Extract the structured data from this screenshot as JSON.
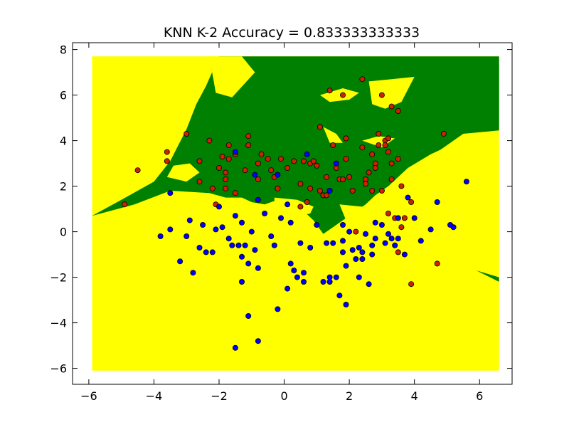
{
  "chart_data": {
    "type": "scatter",
    "title": "KNN K-2 Accuracy = 0.833333333333",
    "xlabel": "",
    "ylabel": "",
    "xlim": [
      -6.5,
      7.0
    ],
    "ylim": [
      -6.7,
      8.3
    ],
    "x_ticks": [
      -6,
      -4,
      -2,
      0,
      2,
      4,
      6
    ],
    "y_ticks": [
      -6,
      -4,
      -2,
      0,
      2,
      4,
      6,
      8
    ],
    "x_tick_labels": [
      "−6",
      "−4",
      "−2",
      "0",
      "2",
      "4",
      "6"
    ],
    "y_tick_labels": [
      "−6",
      "−4",
      "−2",
      "0",
      "2",
      "4",
      "6",
      "8"
    ],
    "grid": false,
    "legend": "none",
    "decision_background": {
      "x_range": [
        -5.9,
        6.6
      ],
      "y_range": [
        -6.1,
        7.7
      ],
      "class_colors": {
        "yellow_region": "#ffff00",
        "green_region": "#008000"
      },
      "green_region_outline": [
        [
          -5.9,
          0.7
        ],
        [
          -5.0,
          1.4
        ],
        [
          -4.0,
          2.2
        ],
        [
          -3.5,
          3.1
        ],
        [
          -3.0,
          4.5
        ],
        [
          -2.7,
          5.6
        ],
        [
          -2.4,
          6.4
        ],
        [
          -2.0,
          7.7
        ],
        [
          -1.1,
          7.7
        ],
        [
          -1.9,
          5.9
        ],
        [
          -1.9,
          7.7
        ],
        [
          0.6,
          7.7
        ],
        [
          3.0,
          7.7
        ],
        [
          6.6,
          7.7
        ],
        [
          6.6,
          4.45
        ],
        [
          5.5,
          4.3
        ],
        [
          4.8,
          3.6
        ],
        [
          4.5,
          3.4
        ],
        [
          3.8,
          2.8
        ],
        [
          3.5,
          2.4
        ],
        [
          3.2,
          2.0
        ],
        [
          2.8,
          1.6
        ],
        [
          2.5,
          1.2
        ],
        [
          2.0,
          0.7
        ],
        [
          1.6,
          0.3
        ],
        [
          1.2,
          -0.1
        ],
        [
          0.9,
          0.5
        ],
        [
          0.6,
          0.9
        ],
        [
          0.2,
          1.3
        ],
        [
          -0.2,
          1.4
        ],
        [
          -0.6,
          1.2
        ],
        [
          -1.0,
          1.3
        ],
        [
          -1.3,
          1.5
        ],
        [
          -1.8,
          1.5
        ],
        [
          -2.3,
          1.7
        ],
        [
          -3.5,
          1.8
        ],
        [
          -4.6,
          1.2
        ],
        [
          -5.9,
          0.7
        ]
      ],
      "green_patch_lower_right": [
        [
          5.9,
          -1.7
        ],
        [
          6.6,
          -2.0
        ],
        [
          6.6,
          -2.2
        ],
        [
          5.9,
          -1.7
        ]
      ],
      "yellow_holes_in_green": [
        [
          [
            -3.6,
            2.4
          ],
          [
            -3.4,
            2.9
          ],
          [
            -2.9,
            3.0
          ],
          [
            -2.6,
            2.6
          ],
          [
            -3.0,
            2.2
          ],
          [
            -3.6,
            2.4
          ]
        ],
        [
          [
            -2.3,
            7.7
          ],
          [
            -1.3,
            7.7
          ],
          [
            -0.9,
            7.0
          ],
          [
            -1.6,
            5.9
          ],
          [
            -2.1,
            6.1
          ],
          [
            -2.3,
            7.7
          ]
        ],
        [
          [
            1.1,
            6.0
          ],
          [
            1.8,
            6.3
          ],
          [
            2.3,
            6.1
          ],
          [
            2.0,
            5.8
          ],
          [
            1.4,
            5.7
          ],
          [
            1.1,
            6.0
          ]
        ],
        [
          [
            2.6,
            6.6
          ],
          [
            3.3,
            6.7
          ],
          [
            4.0,
            6.8
          ],
          [
            3.6,
            5.7
          ],
          [
            3.1,
            5.4
          ],
          [
            2.7,
            5.6
          ],
          [
            2.6,
            6.6
          ]
        ],
        [
          [
            1.2,
            4.6
          ],
          [
            1.6,
            4.3
          ],
          [
            1.8,
            3.9
          ],
          [
            1.4,
            3.9
          ],
          [
            1.2,
            4.6
          ]
        ],
        [
          [
            2.4,
            4.0
          ],
          [
            2.9,
            4.2
          ],
          [
            3.4,
            4.1
          ],
          [
            3.0,
            3.7
          ],
          [
            2.4,
            4.0
          ]
        ],
        [
          [
            -0.3,
            1.5
          ],
          [
            0.4,
            1.4
          ],
          [
            0.9,
            1.1
          ],
          [
            0.8,
            0.8
          ],
          [
            0.1,
            0.6
          ],
          [
            -0.3,
            1.0
          ],
          [
            -0.3,
            1.5
          ]
        ],
        [
          [
            1.7,
            1.2
          ],
          [
            2.4,
            1.1
          ],
          [
            2.9,
            0.6
          ],
          [
            2.4,
            0.4
          ],
          [
            1.9,
            0.5
          ],
          [
            1.7,
            1.2
          ]
        ]
      ]
    },
    "series": [
      {
        "name": "",
        "color": "#cc2200",
        "points": [
          [
            -4.9,
            1.2
          ],
          [
            -4.5,
            2.7
          ],
          [
            -3.6,
            3.5
          ],
          [
            -3.6,
            3.1
          ],
          [
            -3.0,
            4.3
          ],
          [
            -2.6,
            3.1
          ],
          [
            -2.6,
            2.2
          ],
          [
            -2.3,
            4.0
          ],
          [
            -2.2,
            1.9
          ],
          [
            -2.1,
            1.2
          ],
          [
            -2.0,
            2.8
          ],
          [
            -1.9,
            3.3
          ],
          [
            -1.8,
            2.6
          ],
          [
            -1.8,
            2.3
          ],
          [
            -1.8,
            1.9
          ],
          [
            -1.7,
            3.2
          ],
          [
            -1.7,
            3.8
          ],
          [
            -1.5,
            3.4
          ],
          [
            -1.5,
            1.7
          ],
          [
            -1.2,
            2.7
          ],
          [
            -1.1,
            4.2
          ],
          [
            -1.1,
            3.8
          ],
          [
            -0.8,
            3.0
          ],
          [
            -0.8,
            2.3
          ],
          [
            -0.7,
            3.4
          ],
          [
            -0.5,
            3.2
          ],
          [
            -0.4,
            2.7
          ],
          [
            -0.3,
            2.4
          ],
          [
            -0.2,
            1.9
          ],
          [
            -0.1,
            3.2
          ],
          [
            0.1,
            2.8
          ],
          [
            0.3,
            3.1
          ],
          [
            0.5,
            2.1
          ],
          [
            0.5,
            1.1
          ],
          [
            0.6,
            3.1
          ],
          [
            0.7,
            1.3
          ],
          [
            0.8,
            3.0
          ],
          [
            0.8,
            1.9
          ],
          [
            0.9,
            3.1
          ],
          [
            1.0,
            2.9
          ],
          [
            1.1,
            4.6
          ],
          [
            1.1,
            1.8
          ],
          [
            1.2,
            1.6
          ],
          [
            1.3,
            2.4
          ],
          [
            1.3,
            1.6
          ],
          [
            1.4,
            6.2
          ],
          [
            1.5,
            3.8
          ],
          [
            1.6,
            2.8
          ],
          [
            1.7,
            2.3
          ],
          [
            1.8,
            6.0
          ],
          [
            1.8,
            2.3
          ],
          [
            1.9,
            4.1
          ],
          [
            1.9,
            3.2
          ],
          [
            2.0,
            2.4
          ],
          [
            2.1,
            1.8
          ],
          [
            2.2,
            0.0
          ],
          [
            2.4,
            6.7
          ],
          [
            2.4,
            3.7
          ],
          [
            2.5,
            2.3
          ],
          [
            2.5,
            2.1
          ],
          [
            2.6,
            2.6
          ],
          [
            2.7,
            1.8
          ],
          [
            2.7,
            3.4
          ],
          [
            2.8,
            3.0
          ],
          [
            2.8,
            2.8
          ],
          [
            2.9,
            4.3
          ],
          [
            2.9,
            3.8
          ],
          [
            3.0,
            6.0
          ],
          [
            3.0,
            1.8
          ],
          [
            3.1,
            4.0
          ],
          [
            3.1,
            3.8
          ],
          [
            3.2,
            4.1
          ],
          [
            3.2,
            3.5
          ],
          [
            3.3,
            3.0
          ],
          [
            3.3,
            5.5
          ],
          [
            3.3,
            2.3
          ],
          [
            3.5,
            5.3
          ],
          [
            3.5,
            3.2
          ],
          [
            3.6,
            2.0
          ],
          [
            3.2,
            0.8
          ],
          [
            3.4,
            0.6
          ],
          [
            3.6,
            0.2
          ],
          [
            3.7,
            0.6
          ],
          [
            3.9,
            1.3
          ],
          [
            3.5,
            -0.9
          ],
          [
            3.9,
            -2.3
          ],
          [
            4.7,
            -1.4
          ],
          [
            4.9,
            4.3
          ]
        ]
      },
      {
        "name": "",
        "color": "#0000ff",
        "points": [
          [
            -3.8,
            -0.2
          ],
          [
            -3.5,
            0.1
          ],
          [
            -3.5,
            1.7
          ],
          [
            -3.2,
            -1.3
          ],
          [
            -3.0,
            -0.2
          ],
          [
            -2.9,
            0.5
          ],
          [
            -2.8,
            -1.8
          ],
          [
            -2.6,
            -0.7
          ],
          [
            -2.5,
            0.3
          ],
          [
            -2.4,
            -0.9
          ],
          [
            -2.2,
            -0.9
          ],
          [
            -2.1,
            0.1
          ],
          [
            -2.0,
            1.1
          ],
          [
            -1.9,
            0.2
          ],
          [
            -1.7,
            -0.3
          ],
          [
            -1.6,
            -0.6
          ],
          [
            -1.5,
            0.7
          ],
          [
            -1.5,
            -5.1
          ],
          [
            -1.4,
            -0.6
          ],
          [
            -1.3,
            0.4
          ],
          [
            -1.3,
            -1.1
          ],
          [
            -1.3,
            -2.2
          ],
          [
            -1.2,
            -0.6
          ],
          [
            -1.1,
            -1.4
          ],
          [
            -1.1,
            -3.7
          ],
          [
            -1.0,
            0.0
          ],
          [
            -0.9,
            -0.8
          ],
          [
            -0.8,
            -1.6
          ],
          [
            -0.8,
            -4.8
          ],
          [
            -0.6,
            0.8
          ],
          [
            -0.4,
            -0.2
          ],
          [
            -0.3,
            -0.6
          ],
          [
            -0.2,
            -3.4
          ],
          [
            -0.2,
            2.5
          ],
          [
            -0.1,
            0.6
          ],
          [
            0.1,
            -2.5
          ],
          [
            0.2,
            -1.4
          ],
          [
            0.2,
            0.4
          ],
          [
            0.3,
            -1.7
          ],
          [
            0.4,
            -2.0
          ],
          [
            0.5,
            -0.5
          ],
          [
            0.6,
            -1.8
          ],
          [
            0.6,
            -2.2
          ],
          [
            0.7,
            3.4
          ],
          [
            0.8,
            -0.7
          ],
          [
            1.0,
            0.3
          ],
          [
            1.2,
            -2.2
          ],
          [
            1.3,
            -0.5
          ],
          [
            1.4,
            -2.0
          ],
          [
            1.4,
            -2.2
          ],
          [
            1.5,
            -0.5
          ],
          [
            1.6,
            -2.0
          ],
          [
            1.6,
            3.0
          ],
          [
            1.7,
            -2.8
          ],
          [
            1.8,
            -0.9
          ],
          [
            1.8,
            -0.4
          ],
          [
            1.9,
            -1.5
          ],
          [
            1.9,
            -3.2
          ],
          [
            2.0,
            0.0
          ],
          [
            2.1,
            -0.8
          ],
          [
            2.2,
            -1.2
          ],
          [
            2.3,
            -2.0
          ],
          [
            2.3,
            -0.7
          ],
          [
            2.4,
            -0.9
          ],
          [
            2.4,
            -1.2
          ],
          [
            2.5,
            -0.1
          ],
          [
            2.6,
            -2.3
          ],
          [
            2.7,
            -1.0
          ],
          [
            2.7,
            -0.6
          ],
          [
            2.8,
            -0.3
          ],
          [
            2.8,
            0.4
          ],
          [
            3.0,
            0.3
          ],
          [
            3.1,
            -0.5
          ],
          [
            3.2,
            -0.1
          ],
          [
            3.3,
            -0.3
          ],
          [
            3.4,
            -0.6
          ],
          [
            3.5,
            0.6
          ],
          [
            3.5,
            -0.3
          ],
          [
            3.7,
            -1.0
          ],
          [
            3.8,
            1.5
          ],
          [
            4.0,
            0.6
          ],
          [
            4.2,
            -0.4
          ],
          [
            4.5,
            0.1
          ],
          [
            4.7,
            1.3
          ],
          [
            5.1,
            0.3
          ],
          [
            5.2,
            0.2
          ],
          [
            5.6,
            2.2
          ],
          [
            -1.5,
            3.5
          ],
          [
            -0.9,
            2.5
          ],
          [
            -0.8,
            1.4
          ],
          [
            0.1,
            1.2
          ],
          [
            1.4,
            1.8
          ],
          [
            1.8,
            0.3
          ]
        ]
      }
    ]
  }
}
